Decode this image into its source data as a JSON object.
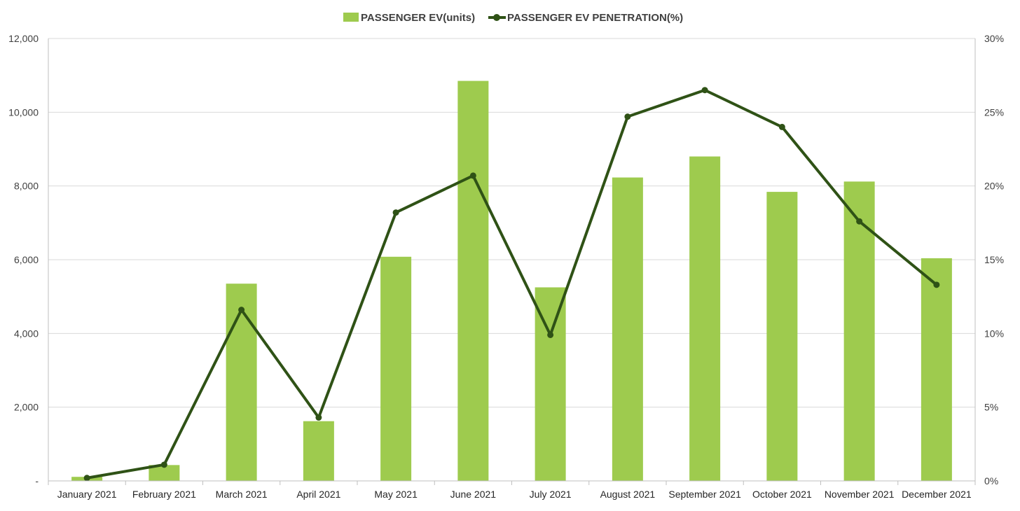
{
  "chart_data": {
    "type": "bar",
    "categories": [
      "January 2021",
      "February 2021",
      "March 2021",
      "April 2021",
      "May 2021",
      "June 2021",
      "July 2021",
      "August 2021",
      "September 2021",
      "October 2021",
      "November 2021",
      "December 2021"
    ],
    "series": [
      {
        "name": "PASSENGER EV(units)",
        "type": "bar",
        "axis": "left",
        "color": "#9ecb4e",
        "values": [
          110,
          430,
          5350,
          1620,
          6080,
          10850,
          5250,
          8230,
          8800,
          7840,
          8120,
          6040
        ]
      },
      {
        "name": "PASSENGER EV PENETRATION(%)",
        "type": "line",
        "axis": "right",
        "color": "#2f5216",
        "values": [
          0.2,
          1.1,
          11.6,
          4.3,
          18.2,
          20.7,
          9.9,
          24.7,
          26.5,
          24.0,
          17.6,
          13.3
        ]
      }
    ],
    "y_left": {
      "min": 0,
      "max": 12000,
      "ticks": [
        "-",
        "2,000",
        "4,000",
        "6,000",
        "8,000",
        "10,000",
        "12,000"
      ]
    },
    "y_right": {
      "min": 0,
      "max": 30,
      "ticks": [
        "0%",
        "5%",
        "10%",
        "15%",
        "20%",
        "25%",
        "30%"
      ]
    },
    "grid": true,
    "legend_position": "top-center"
  }
}
